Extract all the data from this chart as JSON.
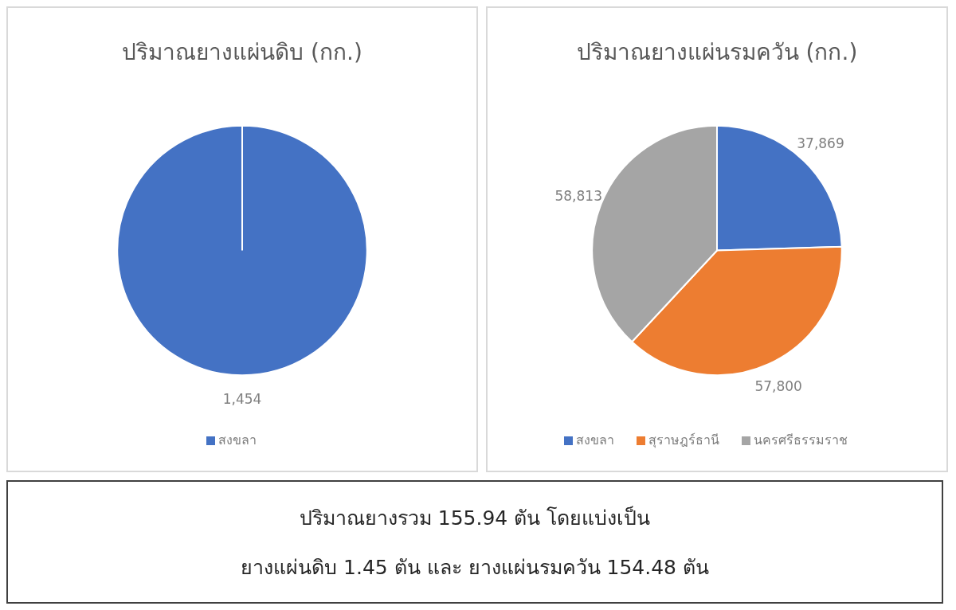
{
  "chart_data": [
    {
      "type": "pie",
      "title": "ปริมาณยางแผ่นดิบ (กก.)",
      "categories": [
        "สงขลา"
      ],
      "values": [
        1454
      ],
      "value_labels": [
        "1,454"
      ],
      "colors": [
        "#4472c4"
      ],
      "legend": "bottom"
    },
    {
      "type": "pie",
      "title": "ปริมาณยางแผ่นรมควัน (กก.)",
      "categories": [
        "สงขลา",
        "สุราษฎร์ธานี",
        "นครศรีธรรมราช"
      ],
      "values": [
        37869,
        57800,
        58813
      ],
      "value_labels": [
        "37,869",
        "57,800",
        "58,813"
      ],
      "colors": [
        "#4472c4",
        "#ed7d31",
        "#a5a5a5"
      ],
      "legend": "bottom"
    },
    {
      "type": "other",
      "annotations": [
        "ปริมาณยางรวม 155.94 ตัน โดยแบ่งเป็น",
        "ยางแผ่นดิบ 1.45 ตัน และ ยางแผ่นรมควัน 154.48 ตัน"
      ]
    }
  ]
}
